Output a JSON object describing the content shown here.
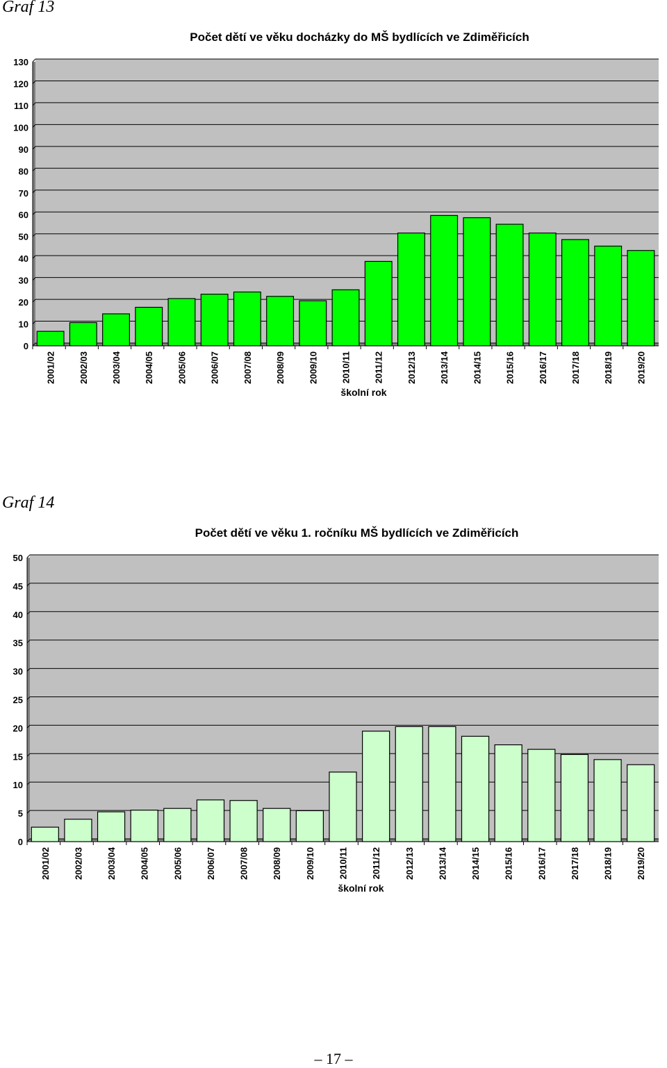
{
  "charts": [
    {
      "caption": "Graf 13"
    },
    {
      "caption": "Graf 14"
    }
  ],
  "chart_data": [
    {
      "type": "bar",
      "title": "Počet dětí ve věku docházky do MŠ bydlících ve Zdiměřicích",
      "xlabel": "školní rok",
      "ylabel": "",
      "ylim": [
        0,
        130
      ],
      "yticks": [
        0,
        10,
        20,
        30,
        40,
        50,
        60,
        70,
        80,
        90,
        100,
        110,
        120,
        130
      ],
      "grid": true,
      "categories": [
        "2001/02",
        "2002/03",
        "2003/04",
        "2004/05",
        "2005/06",
        "2006/07",
        "2007/08",
        "2008/09",
        "2009/10",
        "2010/11",
        "2011/12",
        "2012/13",
        "2013/14",
        "2014/15",
        "2015/16",
        "2016/17",
        "2017/18",
        "2018/19",
        "2019/20"
      ],
      "values": [
        6,
        10,
        14,
        17,
        21,
        23,
        24,
        22,
        20,
        25,
        38,
        51,
        59,
        58,
        55,
        51,
        48,
        45,
        43
      ],
      "bar_color": "#00ff00",
      "plot_background": "#c0c0c0"
    },
    {
      "type": "bar",
      "title": "Počet dětí ve věku 1. ročníku MŠ bydlících ve Zdiměřicích",
      "xlabel": "školní rok",
      "ylabel": "",
      "ylim": [
        0,
        50
      ],
      "yticks": [
        0,
        5,
        10,
        15,
        20,
        25,
        30,
        35,
        40,
        45,
        50
      ],
      "grid": true,
      "categories": [
        "2001/02",
        "2002/03",
        "2003/04",
        "2004/05",
        "2005/06",
        "2006/07",
        "2007/08",
        "2008/09",
        "2009/10",
        "2010/11",
        "2011/12",
        "2012/13",
        "2013/14",
        "2014/15",
        "2015/16",
        "2016/17",
        "2017/18",
        "2018/19",
        "2019/20"
      ],
      "values": [
        2.3,
        3.7,
        5,
        5.3,
        5.6,
        7.1,
        7,
        5.6,
        5.2,
        12,
        19.2,
        20,
        20,
        18.3,
        16.8,
        16,
        15.1,
        14.2,
        13.3
      ],
      "bar_color": "#ccffcc",
      "plot_background": "#c0c0c0"
    }
  ],
  "footer": {
    "page_number": "– 17 –"
  }
}
